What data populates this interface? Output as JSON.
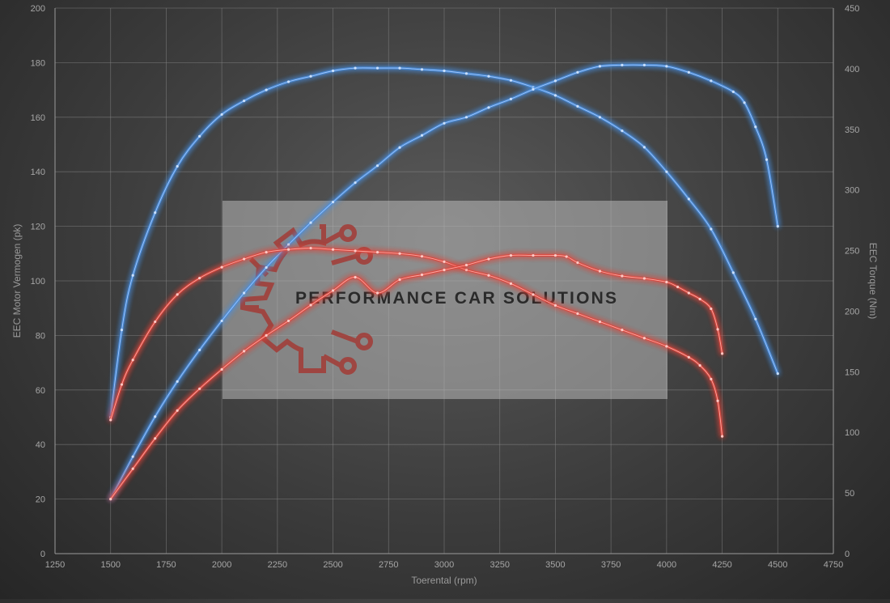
{
  "chart_data": {
    "type": "line",
    "xlabel": "Toerental (rpm)",
    "ylabel_left": "EEC Motor Vermogen (pk)",
    "ylabel_right": "EEC Torque (Nm)",
    "xlim": [
      1250,
      4750
    ],
    "ylim_left": [
      0,
      200
    ],
    "ylim_right": [
      0,
      450
    ],
    "x_ticks": [
      1250,
      1500,
      1750,
      2000,
      2250,
      2500,
      2750,
      3000,
      3250,
      3500,
      3750,
      4000,
      4250,
      4500,
      4750
    ],
    "y_left_ticks": [
      0,
      20,
      40,
      60,
      80,
      100,
      120,
      140,
      160,
      180,
      200
    ],
    "y_right_ticks": [
      0,
      50,
      100,
      150,
      200,
      250,
      300,
      350,
      400,
      450
    ],
    "grid": true,
    "series": [
      {
        "axis": "left",
        "color": "#4a8fe0",
        "x": [
          1500,
          1550,
          1600,
          1700,
          1800,
          1900,
          2000,
          2100,
          2200,
          2300,
          2400,
          2500,
          2600,
          2700,
          2800,
          2900,
          3000,
          3100,
          3200,
          3300,
          3400,
          3500,
          3600,
          3700,
          3800,
          3900,
          4000,
          4100,
          4200,
          4300,
          4400,
          4500
        ],
        "y": [
          50,
          82,
          102,
          125,
          142,
          153,
          161,
          166,
          170,
          173,
          175,
          177,
          178,
          178,
          178,
          177.5,
          177,
          176,
          175,
          173.5,
          171,
          168,
          164,
          160,
          155,
          149,
          140,
          130,
          119,
          103,
          86,
          66
        ]
      },
      {
        "axis": "right",
        "color": "#4a8fe0",
        "x": [
          1500,
          1600,
          1700,
          1800,
          1900,
          2000,
          2100,
          2200,
          2300,
          2400,
          2500,
          2600,
          2700,
          2800,
          2900,
          3000,
          3100,
          3200,
          3300,
          3400,
          3500,
          3600,
          3700,
          3800,
          3900,
          4000,
          4100,
          4200,
          4300,
          4350,
          4400,
          4450,
          4500
        ],
        "y": [
          45,
          80,
          113,
          142,
          168,
          192,
          215,
          236,
          255,
          273,
          290,
          306,
          320,
          335,
          345,
          355,
          360,
          368,
          375,
          383,
          390,
          397,
          402,
          403,
          403,
          402,
          397,
          390,
          381,
          372,
          352,
          325,
          270
        ]
      },
      {
        "axis": "left",
        "color": "#e0453b",
        "x": [
          1500,
          1550,
          1600,
          1700,
          1800,
          1900,
          2000,
          2100,
          2200,
          2300,
          2400,
          2500,
          2600,
          2700,
          2800,
          2900,
          3000,
          3100,
          3200,
          3300,
          3400,
          3500,
          3600,
          3700,
          3800,
          3900,
          4000,
          4100,
          4150,
          4200,
          4230,
          4250
        ],
        "y": [
          49,
          62,
          71,
          85,
          95,
          101,
          105,
          108,
          110.5,
          111.5,
          112,
          111.5,
          111,
          110.5,
          110,
          109,
          107,
          104,
          102,
          99,
          95,
          91,
          88,
          85,
          82,
          79,
          76,
          72,
          69,
          64,
          56,
          43
        ]
      },
      {
        "axis": "right",
        "color": "#e0453b",
        "x": [
          1500,
          1600,
          1700,
          1800,
          1900,
          2000,
          2100,
          2200,
          2300,
          2400,
          2500,
          2600,
          2700,
          2800,
          2900,
          3000,
          3100,
          3200,
          3300,
          3400,
          3500,
          3550,
          3600,
          3700,
          3800,
          3900,
          4000,
          4050,
          4100,
          4150,
          4200,
          4230,
          4250
        ],
        "y": [
          45,
          70,
          95,
          118,
          136,
          152,
          167,
          180,
          192,
          205,
          217,
          228,
          215,
          226,
          230,
          234,
          238,
          243,
          246,
          246,
          246,
          245,
          240,
          233,
          229,
          227,
          224,
          220,
          215,
          210,
          202,
          185,
          165
        ]
      }
    ]
  },
  "watermark": {
    "text": "PERFORMANCE CAR SOLUTIONS"
  }
}
